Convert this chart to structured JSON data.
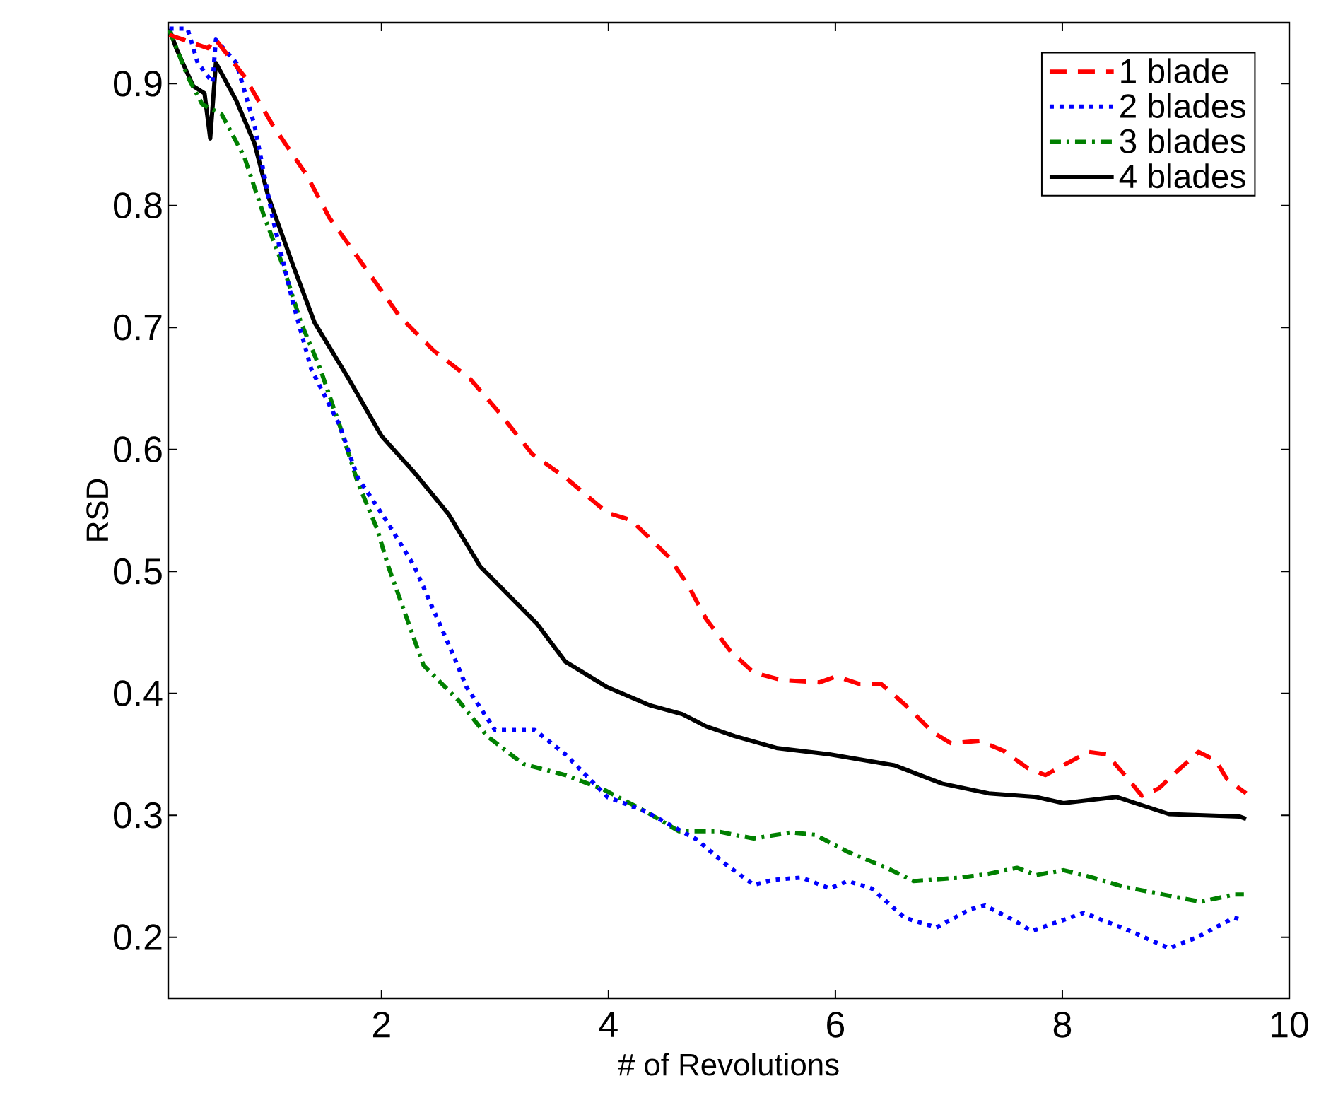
{
  "chart_data": {
    "type": "line",
    "xlabel": "# of Revolutions",
    "ylabel": "RSD",
    "xlim": [
      0.12,
      10
    ],
    "ylim": [
      0.15,
      0.95
    ],
    "xticks": [
      2,
      4,
      6,
      8,
      10
    ],
    "yticks": [
      0.2,
      0.3,
      0.4,
      0.5,
      0.6,
      0.7,
      0.8,
      0.9
    ],
    "grid": false,
    "legend": "top right",
    "marker": "none",
    "series": [
      {
        "name": "1 blade",
        "color": "#ff0000",
        "line_style": "dashed",
        "x": [
          0.13,
          0.47,
          0.53,
          0.79,
          1.04,
          1.34,
          1.54,
          1.84,
          2.16,
          2.46,
          2.78,
          3.03,
          3.33,
          3.62,
          3.99,
          4.2,
          4.53,
          4.7,
          4.86,
          5.08,
          5.28,
          5.52,
          5.86,
          6.01,
          6.2,
          6.4,
          6.61,
          6.86,
          7.02,
          7.27,
          7.48,
          7.69,
          7.85,
          8.01,
          8.23,
          8.39,
          8.56,
          8.7,
          8.85,
          9.01,
          9.2,
          9.35,
          9.45,
          9.56,
          9.62
        ],
        "values": [
          0.94,
          0.929,
          0.937,
          0.906,
          0.866,
          0.825,
          0.79,
          0.751,
          0.709,
          0.681,
          0.658,
          0.631,
          0.596,
          0.577,
          0.548,
          0.542,
          0.512,
          0.489,
          0.461,
          0.434,
          0.417,
          0.411,
          0.409,
          0.414,
          0.408,
          0.408,
          0.391,
          0.368,
          0.359,
          0.361,
          0.353,
          0.339,
          0.333,
          0.341,
          0.352,
          0.35,
          0.332,
          0.316,
          0.322,
          0.336,
          0.352,
          0.345,
          0.33,
          0.322,
          0.318
        ]
      },
      {
        "name": "2 blades",
        "color": "#0000ff",
        "line_style": "dotted",
        "x": [
          0.13,
          0.29,
          0.38,
          0.51,
          0.54,
          0.72,
          0.88,
          1.04,
          1.22,
          1.38,
          1.63,
          1.79,
          2.04,
          2.29,
          2.62,
          2.75,
          3.0,
          3.35,
          3.62,
          3.99,
          4.33,
          4.78,
          5.03,
          5.28,
          5.45,
          5.7,
          5.95,
          6.11,
          6.32,
          6.61,
          6.89,
          7.19,
          7.32,
          7.57,
          7.73,
          7.94,
          8.19,
          8.6,
          8.94,
          9.19,
          9.51,
          9.6
        ],
        "values": [
          0.945,
          0.945,
          0.917,
          0.901,
          0.936,
          0.917,
          0.866,
          0.79,
          0.72,
          0.666,
          0.62,
          0.577,
          0.542,
          0.504,
          0.434,
          0.405,
          0.37,
          0.37,
          0.35,
          0.315,
          0.303,
          0.28,
          0.26,
          0.243,
          0.247,
          0.249,
          0.24,
          0.246,
          0.24,
          0.216,
          0.208,
          0.223,
          0.226,
          0.214,
          0.205,
          0.212,
          0.22,
          0.205,
          0.191,
          0.2,
          0.216,
          0.214
        ]
      },
      {
        "name": "3 blades",
        "color": "#008000",
        "line_style": "dashdot",
        "x": [
          0.13,
          0.29,
          0.42,
          0.59,
          0.79,
          0.97,
          1.13,
          1.29,
          1.46,
          1.63,
          1.79,
          1.96,
          2.06,
          2.37,
          2.68,
          2.93,
          3.25,
          3.62,
          3.96,
          4.33,
          4.62,
          4.95,
          5.28,
          5.61,
          5.82,
          6.11,
          6.45,
          6.69,
          7.11,
          7.35,
          7.6,
          7.77,
          8.01,
          8.19,
          8.56,
          8.89,
          9.22,
          9.51,
          9.6
        ],
        "values": [
          0.944,
          0.906,
          0.883,
          0.875,
          0.84,
          0.79,
          0.751,
          0.704,
          0.666,
          0.62,
          0.573,
          0.535,
          0.504,
          0.423,
          0.394,
          0.365,
          0.342,
          0.333,
          0.321,
          0.303,
          0.287,
          0.287,
          0.281,
          0.286,
          0.284,
          0.27,
          0.257,
          0.246,
          0.249,
          0.252,
          0.257,
          0.251,
          0.255,
          0.251,
          0.241,
          0.235,
          0.229,
          0.235,
          0.235
        ]
      },
      {
        "name": "4 blades",
        "color": "#000000",
        "line_style": "solid",
        "x": [
          0.13,
          0.19,
          0.34,
          0.44,
          0.49,
          0.54,
          0.72,
          0.88,
          1.0,
          1.22,
          1.41,
          1.71,
          2.0,
          2.29,
          2.59,
          2.87,
          3.37,
          3.62,
          3.99,
          4.37,
          4.65,
          4.86,
          5.11,
          5.49,
          5.95,
          6.52,
          6.94,
          7.35,
          7.77,
          8.01,
          8.48,
          8.94,
          9.56,
          9.62
        ],
        "values": [
          0.945,
          0.929,
          0.898,
          0.892,
          0.855,
          0.917,
          0.886,
          0.851,
          0.808,
          0.751,
          0.704,
          0.658,
          0.611,
          0.581,
          0.547,
          0.504,
          0.457,
          0.426,
          0.405,
          0.39,
          0.383,
          0.373,
          0.365,
          0.355,
          0.35,
          0.341,
          0.326,
          0.318,
          0.315,
          0.31,
          0.315,
          0.301,
          0.299,
          0.297
        ]
      }
    ]
  }
}
